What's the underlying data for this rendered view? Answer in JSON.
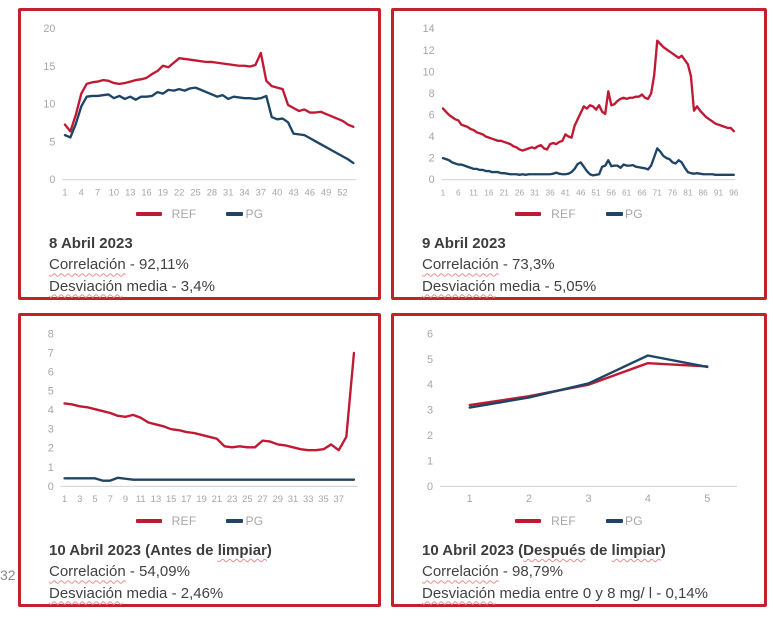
{
  "page": {
    "number": "32"
  },
  "colors": {
    "panel_border": "#C3222C",
    "ref_line": "#C01933",
    "pg_line": "#1F4566",
    "axis_text": "#A6A6A6",
    "baseline": "#D9D9D9",
    "squiggle": "#EC8C8C",
    "body_text": "#404040"
  },
  "chart_data": [
    {
      "type": "line",
      "title": "8 Abril 2023",
      "ylim": [
        0,
        20
      ],
      "yticks": [
        0,
        5,
        10,
        15,
        20
      ],
      "xticks": [
        1,
        4,
        7,
        10,
        13,
        16,
        19,
        22,
        25,
        28,
        31,
        34,
        37,
        40,
        43,
        46,
        49,
        52
      ],
      "legend_position": "bottom",
      "grid": false,
      "series": [
        {
          "name": "REF",
          "color": "#C01933",
          "values": [
            7.3,
            6.4,
            8.6,
            11.4,
            12.7,
            12.9,
            13.0,
            13.2,
            13.1,
            12.8,
            12.7,
            12.8,
            13.0,
            13.2,
            13.3,
            13.5,
            14.0,
            14.4,
            15.1,
            14.9,
            15.5,
            16.1,
            16.0,
            15.9,
            15.8,
            15.7,
            15.6,
            15.6,
            15.5,
            15.4,
            15.3,
            15.2,
            15.1,
            15.1,
            15.0,
            15.2,
            16.8,
            13.1,
            12.4,
            12.2,
            12.0,
            9.9,
            9.5,
            9.1,
            9.3,
            8.9,
            8.9,
            9.0,
            8.7,
            8.4,
            8.1,
            7.8,
            7.3,
            7.0
          ]
        },
        {
          "name": "PG",
          "color": "#1F4566",
          "values": [
            5.9,
            5.6,
            7.4,
            9.7,
            11.0,
            11.1,
            11.1,
            11.2,
            11.3,
            10.8,
            11.1,
            10.7,
            11.0,
            10.6,
            11.0,
            11.0,
            11.1,
            11.6,
            11.4,
            11.9,
            11.8,
            12.0,
            11.8,
            12.1,
            12.2,
            11.9,
            11.6,
            11.3,
            11.0,
            11.2,
            10.7,
            11.0,
            10.9,
            10.8,
            10.8,
            10.7,
            10.8,
            11.1,
            8.3,
            8.0,
            8.1,
            7.6,
            6.1,
            6.0,
            5.9,
            5.5,
            5.1,
            4.7,
            4.3,
            3.9,
            3.5,
            3.1,
            2.7,
            2.2
          ]
        }
      ]
    },
    {
      "type": "line",
      "title": "9 Abril 2023",
      "ylim": [
        0,
        14
      ],
      "yticks": [
        0,
        2,
        4,
        6,
        8,
        10,
        12,
        14
      ],
      "xticks": [
        1,
        6,
        11,
        16,
        21,
        26,
        31,
        36,
        41,
        46,
        51,
        56,
        61,
        66,
        71,
        76,
        81,
        86,
        91,
        96
      ],
      "legend_position": "bottom",
      "grid": false,
      "series": [
        {
          "name": "REF",
          "color": "#C01933",
          "values": [
            6.6,
            6.3,
            6.0,
            5.8,
            5.6,
            5.5,
            5.1,
            5.0,
            4.9,
            4.7,
            4.6,
            4.4,
            4.3,
            4.2,
            4.0,
            3.9,
            3.8,
            3.7,
            3.6,
            3.6,
            3.5,
            3.4,
            3.3,
            3.1,
            3.0,
            2.8,
            2.7,
            2.8,
            2.9,
            3.0,
            2.9,
            3.1,
            3.2,
            2.9,
            2.8,
            3.3,
            3.4,
            3.3,
            3.5,
            3.6,
            4.2,
            4.0,
            3.9,
            5.0,
            5.6,
            6.2,
            6.8,
            6.6,
            6.9,
            6.8,
            6.5,
            6.9,
            6.3,
            6.1,
            8.2,
            6.9,
            7.0,
            7.3,
            7.5,
            7.6,
            7.5,
            7.6,
            7.6,
            7.7,
            7.7,
            7.9,
            7.6,
            7.5,
            8.0,
            9.7,
            12.9,
            12.6,
            12.3,
            12.1,
            11.9,
            11.7,
            11.5,
            11.3,
            11.5,
            11.1,
            10.7,
            9.6,
            6.4,
            6.8,
            6.4,
            6.1,
            5.8,
            5.6,
            5.4,
            5.2,
            5.1,
            5.0,
            4.9,
            4.8,
            4.8,
            4.5
          ]
        },
        {
          "name": "PG",
          "color": "#1F4566",
          "values": [
            2.0,
            1.9,
            1.8,
            1.6,
            1.5,
            1.4,
            1.4,
            1.3,
            1.2,
            1.1,
            1.0,
            1.0,
            0.9,
            0.9,
            0.8,
            0.8,
            0.7,
            0.7,
            0.7,
            0.6,
            0.6,
            0.55,
            0.5,
            0.5,
            0.5,
            0.45,
            0.5,
            0.45,
            0.5,
            0.5,
            0.5,
            0.5,
            0.5,
            0.5,
            0.5,
            0.5,
            0.55,
            0.65,
            0.55,
            0.5,
            0.5,
            0.55,
            0.7,
            1.0,
            1.45,
            1.6,
            1.2,
            0.8,
            0.5,
            0.4,
            0.45,
            0.5,
            1.2,
            1.3,
            1.8,
            1.25,
            1.3,
            1.3,
            1.1,
            1.4,
            1.3,
            1.3,
            1.35,
            1.2,
            1.15,
            1.1,
            1.05,
            0.95,
            1.3,
            2.1,
            2.9,
            2.6,
            2.2,
            2.0,
            1.9,
            1.6,
            1.5,
            1.8,
            1.6,
            1.1,
            0.7,
            0.6,
            0.55,
            0.6,
            0.55,
            0.5,
            0.5,
            0.5,
            0.5,
            0.45,
            0.45,
            0.45,
            0.45,
            0.45,
            0.45,
            0.45
          ]
        }
      ]
    },
    {
      "type": "line",
      "title": "10 Abril 2023 (Antes de limpiar)",
      "ylim": [
        0,
        8
      ],
      "yticks": [
        0,
        1,
        2,
        3,
        4,
        5,
        6,
        7,
        8
      ],
      "xticks": [
        1,
        3,
        5,
        7,
        9,
        11,
        13,
        15,
        17,
        19,
        21,
        23,
        25,
        27,
        29,
        31,
        33,
        35,
        37
      ],
      "legend_position": "bottom",
      "grid": false,
      "series": [
        {
          "name": "REF",
          "color": "#C01933",
          "values": [
            4.35,
            4.3,
            4.2,
            4.15,
            4.05,
            3.95,
            3.85,
            3.7,
            3.65,
            3.75,
            3.6,
            3.35,
            3.25,
            3.15,
            3.0,
            2.95,
            2.85,
            2.8,
            2.7,
            2.6,
            2.5,
            2.1,
            2.05,
            2.1,
            2.05,
            2.05,
            2.4,
            2.35,
            2.2,
            2.15,
            2.05,
            1.95,
            1.9,
            1.9,
            1.95,
            2.2,
            1.9,
            2.6,
            7.0
          ]
        },
        {
          "name": "PG",
          "color": "#1F4566",
          "values": [
            0.42,
            0.42,
            0.42,
            0.42,
            0.42,
            0.3,
            0.3,
            0.45,
            0.4,
            0.35,
            0.35,
            0.35,
            0.35,
            0.35,
            0.35,
            0.35,
            0.35,
            0.35,
            0.35,
            0.35,
            0.35,
            0.35,
            0.35,
            0.35,
            0.35,
            0.35,
            0.35,
            0.35,
            0.35,
            0.35,
            0.35,
            0.35,
            0.35,
            0.35,
            0.35,
            0.35,
            0.35,
            0.35,
            0.35
          ]
        }
      ]
    },
    {
      "type": "line",
      "title": "10 Abril 2023 (Después de limpiar)",
      "ylim": [
        0,
        6
      ],
      "yticks": [
        0,
        1,
        2,
        3,
        4,
        5,
        6
      ],
      "xticks": [
        1,
        2,
        3,
        4,
        5
      ],
      "legend_position": "bottom",
      "grid": false,
      "series": [
        {
          "name": "REF",
          "color": "#C01933",
          "values": [
            3.2,
            3.55,
            4.0,
            4.85,
            4.72
          ]
        },
        {
          "name": "PG",
          "color": "#1F4566",
          "values": [
            3.1,
            3.5,
            4.05,
            5.15,
            4.7
          ]
        }
      ]
    }
  ],
  "panels": [
    {
      "title_segments": [
        {
          "text": "8 Abril 2023",
          "squiggle": false
        }
      ],
      "stats": [
        {
          "segments": [
            {
              "text": "Correlación",
              "squiggle": true
            },
            {
              "text": " - 92,11%",
              "squiggle": false
            }
          ]
        },
        {
          "segments": [
            {
              "text": "Desviación",
              "squiggle": true
            },
            {
              "text": " media - 3,4%",
              "squiggle": false
            }
          ]
        }
      ]
    },
    {
      "title_segments": [
        {
          "text": "9 Abril 2023",
          "squiggle": false
        }
      ],
      "stats": [
        {
          "segments": [
            {
              "text": "Correlación",
              "squiggle": true
            },
            {
              "text": " - 73,3%",
              "squiggle": false
            }
          ]
        },
        {
          "segments": [
            {
              "text": "Desviación",
              "squiggle": true
            },
            {
              "text": " media - 5,05%",
              "squiggle": false
            }
          ]
        }
      ]
    },
    {
      "title_segments": [
        {
          "text": "10 Abril 2023 (Antes de ",
          "squiggle": false
        },
        {
          "text": "limpiar",
          "squiggle": true
        },
        {
          "text": ")",
          "squiggle": false
        }
      ],
      "stats": [
        {
          "segments": [
            {
              "text": "Correlación",
              "squiggle": true
            },
            {
              "text": " - 54,09%",
              "squiggle": false
            }
          ]
        },
        {
          "segments": [
            {
              "text": "Desviación",
              "squiggle": true
            },
            {
              "text": " media - 2,46%",
              "squiggle": false
            }
          ]
        }
      ]
    },
    {
      "title_segments": [
        {
          "text": "10 Abril 2023 (",
          "squiggle": false
        },
        {
          "text": "Después",
          "squiggle": true
        },
        {
          "text": " de ",
          "squiggle": false
        },
        {
          "text": "limpiar",
          "squiggle": true
        },
        {
          "text": ")",
          "squiggle": false
        }
      ],
      "stats": [
        {
          "segments": [
            {
              "text": "Correlación",
              "squiggle": true
            },
            {
              "text": " - 98,79%",
              "squiggle": false
            }
          ]
        },
        {
          "segments": [
            {
              "text": "Desviación",
              "squiggle": true
            },
            {
              "text": " media entre 0 y 8 mg/ l - 0,14%",
              "squiggle": false
            }
          ]
        }
      ]
    }
  ]
}
